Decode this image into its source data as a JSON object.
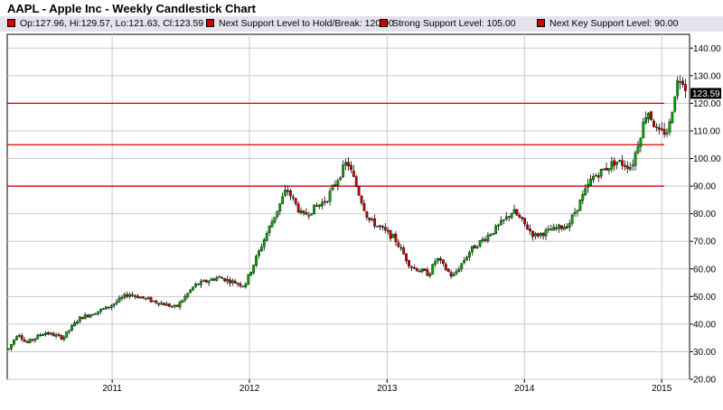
{
  "chart_data": {
    "type": "candlestick",
    "title": "AAPL - Apple Inc - Weekly Candlestick Chart",
    "legend": [
      {
        "label": "Op:127.96, Hi:129.57, Lo:121.63, Cl:123.59",
        "color": "#cc0000"
      },
      {
        "label": "Next Support Level to Hold/Break: 120.00",
        "color": "#cc0000"
      },
      {
        "label": "Strong Support Level: 105.00",
        "color": "#cc0000"
      },
      {
        "label": "Next Key Support Level: 90.00",
        "color": "#cc0000"
      }
    ],
    "last_close_label": "123.59",
    "ylim": [
      20,
      145
    ],
    "y_ticks": [
      "20.00",
      "30.00",
      "40.00",
      "50.00",
      "60.00",
      "70.00",
      "80.00",
      "90.00",
      "100.00",
      "110.00",
      "120.00",
      "130.00",
      "140.00"
    ],
    "x_ticks": [
      "2011",
      "2012",
      "2013",
      "2014",
      "2015"
    ],
    "support_levels": [
      120,
      105,
      90
    ],
    "grid": true,
    "colors": {
      "up": "#00aa00",
      "down": "#cc0000",
      "support_line": "#dd0000",
      "grid": "#c8c8c8"
    },
    "trend_points": [
      {
        "x": "2010-04-01",
        "y": 31
      },
      {
        "x": "2010-04-26",
        "y": 37
      },
      {
        "x": "2010-05-17",
        "y": 33
      },
      {
        "x": "2010-07-05",
        "y": 37
      },
      {
        "x": "2010-08-23",
        "y": 35
      },
      {
        "x": "2010-10-04",
        "y": 42
      },
      {
        "x": "2010-12-20",
        "y": 46
      },
      {
        "x": "2011-02-14",
        "y": 51
      },
      {
        "x": "2011-04-04",
        "y": 49
      },
      {
        "x": "2011-06-20",
        "y": 46
      },
      {
        "x": "2011-08-08",
        "y": 54
      },
      {
        "x": "2011-10-10",
        "y": 57
      },
      {
        "x": "2011-12-19",
        "y": 54
      },
      {
        "x": "2012-02-13",
        "y": 72
      },
      {
        "x": "2012-04-09",
        "y": 89
      },
      {
        "x": "2012-05-21",
        "y": 79
      },
      {
        "x": "2012-07-23",
        "y": 85
      },
      {
        "x": "2012-09-17",
        "y": 99
      },
      {
        "x": "2012-11-12",
        "y": 78
      },
      {
        "x": "2013-01-21",
        "y": 71
      },
      {
        "x": "2013-03-04",
        "y": 61
      },
      {
        "x": "2013-04-22",
        "y": 58
      },
      {
        "x": "2013-05-13",
        "y": 64
      },
      {
        "x": "2013-06-24",
        "y": 57
      },
      {
        "x": "2013-08-12",
        "y": 67
      },
      {
        "x": "2013-10-21",
        "y": 75
      },
      {
        "x": "2013-12-02",
        "y": 81
      },
      {
        "x": "2014-01-27",
        "y": 72
      },
      {
        "x": "2014-04-28",
        "y": 76
      },
      {
        "x": "2014-06-30",
        "y": 93
      },
      {
        "x": "2014-09-01",
        "y": 99
      },
      {
        "x": "2014-10-13",
        "y": 97
      },
      {
        "x": "2014-11-24",
        "y": 118
      },
      {
        "x": "2014-12-22",
        "y": 109
      },
      {
        "x": "2015-01-19",
        "y": 110
      },
      {
        "x": "2015-02-09",
        "y": 127
      },
      {
        "x": "2015-02-23",
        "y": 130
      },
      {
        "x": "2015-03-09",
        "y": 124
      }
    ]
  }
}
